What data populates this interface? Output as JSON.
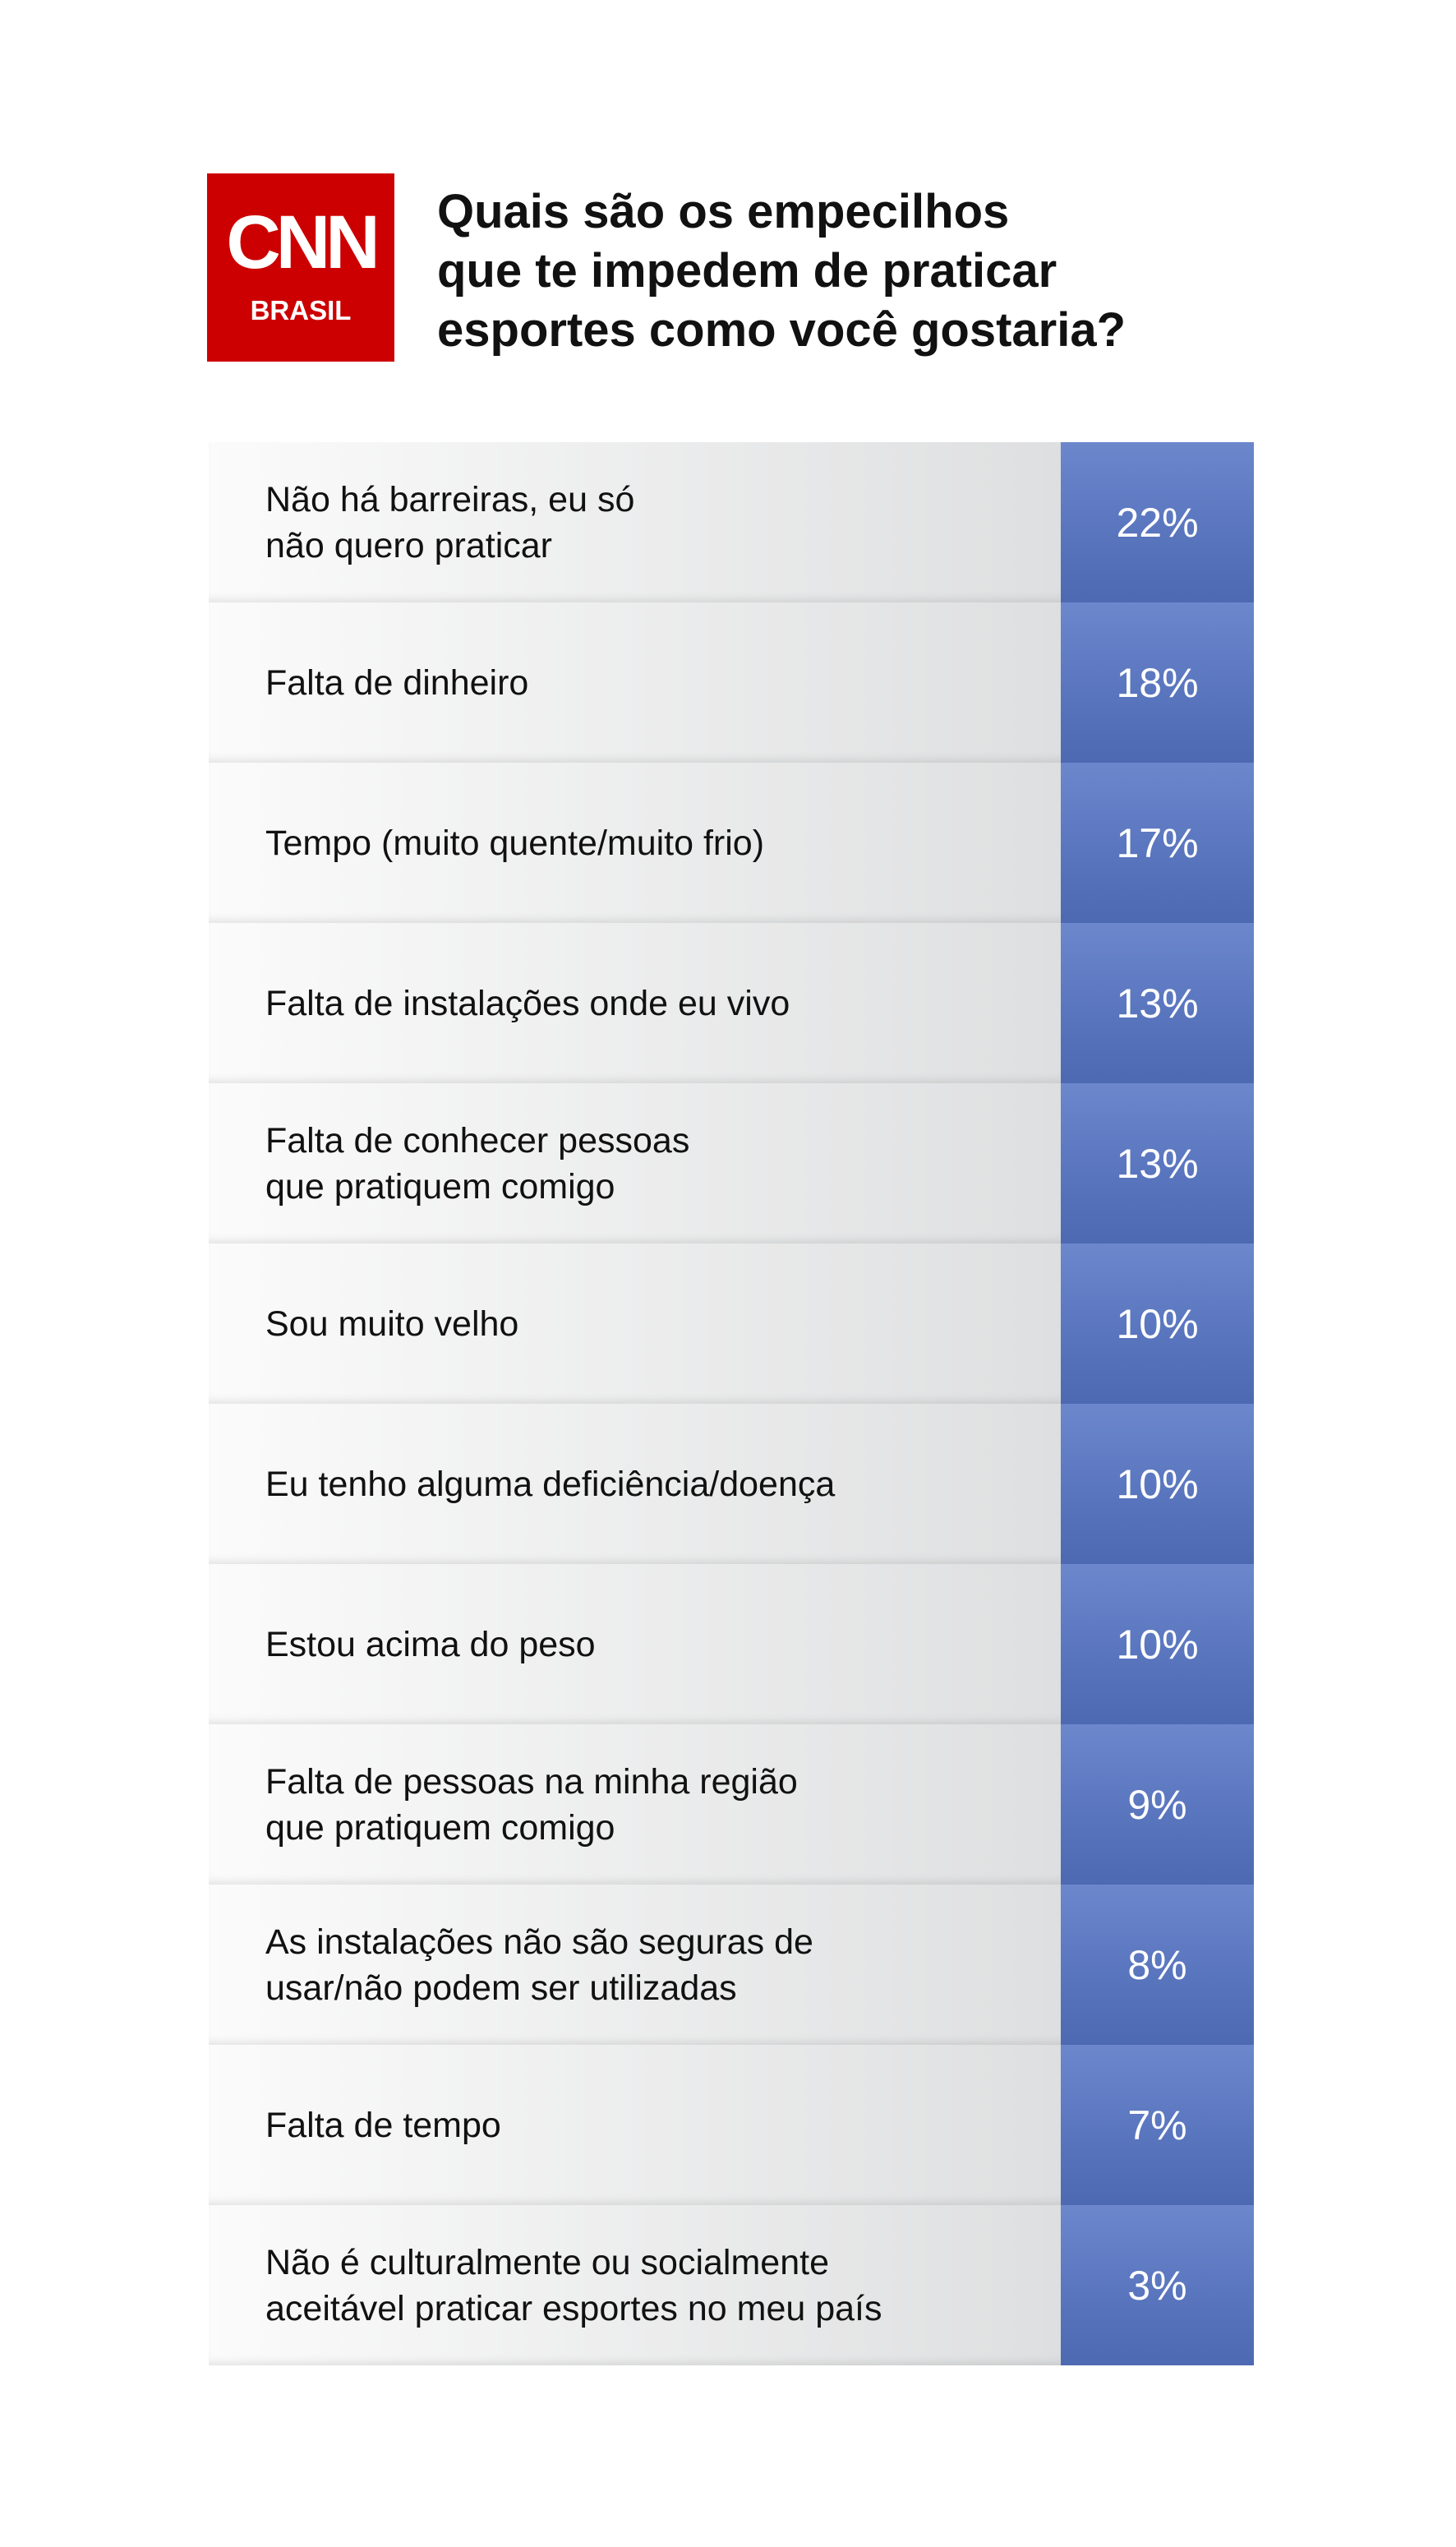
{
  "header": {
    "logo": {
      "text": "CNN",
      "subtitle": "BRASIL"
    },
    "title": [
      "Quais são os empecilhos",
      "que te impedem de praticar",
      "esportes como você gostaria?"
    ]
  },
  "table": {
    "rows": [
      {
        "label": [
          "Não há barreiras, eu só",
          "não quero praticar"
        ],
        "value": "22%"
      },
      {
        "label": [
          "Falta de dinheiro"
        ],
        "value": "18%"
      },
      {
        "label": [
          "Tempo (muito quente/muito frio)"
        ],
        "value": "17%"
      },
      {
        "label": [
          "Falta de instalações onde eu vivo"
        ],
        "value": "13%"
      },
      {
        "label": [
          "Falta de conhecer pessoas",
          "que pratiquem comigo"
        ],
        "value": "13%"
      },
      {
        "label": [
          "Sou muito velho"
        ],
        "value": "10%"
      },
      {
        "label": [
          "Eu tenho alguma deficiência/doença"
        ],
        "value": "10%"
      },
      {
        "label": [
          "Estou acima do peso"
        ],
        "value": "10%"
      },
      {
        "label": [
          "Falta de pessoas na minha região",
          "que pratiquem comigo"
        ],
        "value": "9%"
      },
      {
        "label": [
          "As instalações não são seguras de",
          "usar/não podem ser utilizadas"
        ],
        "value": "8%"
      },
      {
        "label": [
          "Falta de tempo"
        ],
        "value": "7%"
      },
      {
        "label": [
          "Não é culturalmente ou socialmente",
          "aceitável praticar esportes no meu país"
        ],
        "value": "3%"
      }
    ]
  }
}
